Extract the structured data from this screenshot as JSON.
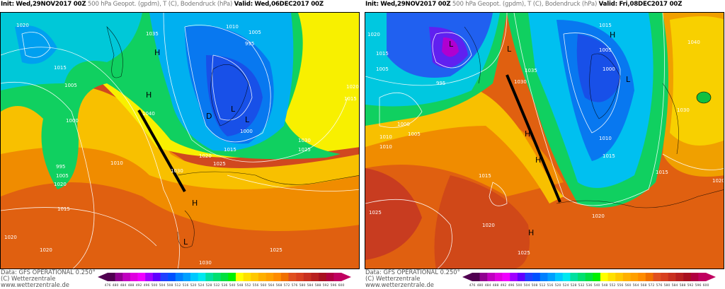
{
  "panels": [
    {
      "init_label": "Init:",
      "init": "Wed,29NOV2017 00Z",
      "title": "500 hPa Geopot. (gpdm), T (C), Bodendruck (hPa)",
      "valid_label": "Valid:",
      "valid": "Wed,06DEC2017 00Z",
      "labels": [
        "1020",
        "1015",
        "1005",
        "1000",
        "995",
        "1010",
        "1005",
        "1020",
        "1015",
        "1020",
        "1020",
        "1010",
        "1005",
        "995",
        "1000",
        "1015",
        "1020",
        "1025",
        "1030",
        "1040",
        "1035",
        "1030",
        "1025",
        "1015",
        "1020",
        "1025",
        "1030"
      ],
      "markers": [
        "H",
        "H",
        "L",
        "L",
        "H",
        "L",
        "D"
      ]
    },
    {
      "init_label": "Init:",
      "init": "Wed,29NOV2017 00Z",
      "title": "500 hPa Geopot. (gpdm), T (C), Bodendruck (hPa)",
      "valid_label": "Valid:",
      "valid": "Fri,08DEC2017 00Z",
      "labels": [
        "1020",
        "1015",
        "1005",
        "1000",
        "1010",
        "995",
        "1005",
        "1010",
        "1015",
        "1025",
        "1020",
        "1025",
        "1020",
        "1015",
        "1005",
        "1000",
        "1010",
        "1015",
        "1030",
        "1035",
        "1040",
        "1030",
        "1020",
        "1015"
      ],
      "markers": [
        "L",
        "L",
        "H",
        "H",
        "H",
        "L",
        "H"
      ]
    }
  ],
  "footer": {
    "data": "Data: GFS OPERATIONAL 0.250°",
    "copyright": "(C) Wetterzentrale",
    "url": "www.wetterzentrale.de"
  },
  "scale": {
    "values": [
      476,
      480,
      484,
      488,
      492,
      496,
      500,
      504,
      508,
      512,
      516,
      520,
      524,
      528,
      532,
      536,
      540,
      548,
      552,
      556,
      560,
      564,
      568,
      572,
      576,
      580,
      584,
      588,
      592,
      596,
      600
    ],
    "colors": [
      "#500050",
      "#900090",
      "#c000c0",
      "#e000e0",
      "#f000ff",
      "#a000ff",
      "#6000ff",
      "#2040ff",
      "#0050ff",
      "#0080ff",
      "#00a0ff",
      "#00c8ff",
      "#00e8f0",
      "#00e0a0",
      "#00e070",
      "#00e040",
      "#00f000",
      "#ffff00",
      "#ffe000",
      "#ffc800",
      "#ffb000",
      "#ffa000",
      "#ff8c00",
      "#f07000",
      "#e05020",
      "#d84020",
      "#c83020",
      "#b82020",
      "#a81020",
      "#b00040",
      "#c00060"
    ]
  },
  "colors": {
    "blue": "#1858f0",
    "cyan": "#00c8f0",
    "green": "#10d860",
    "yellow": "#f8f000",
    "orange": "#f8a000",
    "red": "#d85020"
  }
}
